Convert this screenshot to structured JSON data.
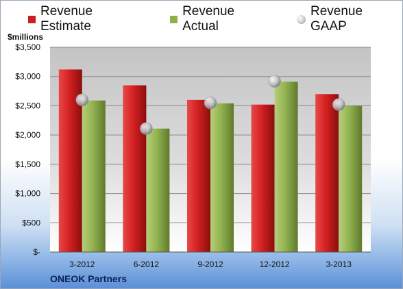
{
  "chart_data": {
    "type": "bar",
    "categories": [
      "3-2012",
      "6-2012",
      "9-2012",
      "12-2012",
      "3-2013"
    ],
    "series": [
      {
        "name": "Revenue Estimate",
        "kind": "bar",
        "color": "#cc1f1f",
        "values": [
          3120,
          2850,
          2600,
          2520,
          2700
        ]
      },
      {
        "name": "Revenue Actual",
        "kind": "bar",
        "color": "#8fb04a",
        "values": [
          2590,
          2110,
          2540,
          2910,
          2500
        ]
      },
      {
        "name": "Revenue GAAP",
        "kind": "marker",
        "color": "#b9bcc2",
        "values": [
          2600,
          2110,
          2550,
          2920,
          2520
        ]
      }
    ],
    "ylabel": "$millions",
    "ylim": [
      0,
      3500
    ],
    "yticks": [
      0,
      500,
      1000,
      1500,
      2000,
      2500,
      3000,
      3500
    ],
    "ytick_labels": [
      "$-",
      "$500",
      "$1,000",
      "$1,500",
      "$2,000",
      "$2,500",
      "$3,000",
      "$3,500"
    ],
    "grid": true,
    "legend_position": "top"
  },
  "company": "ONEOK Partners"
}
